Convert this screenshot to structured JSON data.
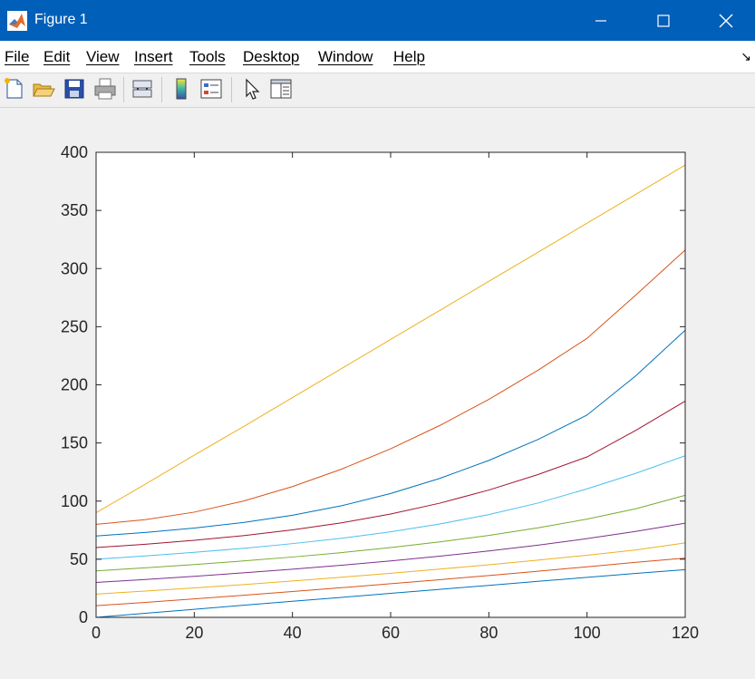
{
  "window": {
    "title": "Figure 1",
    "minimize_icon": "minimize-icon",
    "maximize_icon": "maximize-icon",
    "close_icon": "close-icon"
  },
  "menu": {
    "items": [
      "File",
      "Edit",
      "View",
      "Insert",
      "Tools",
      "Desktop",
      "Window",
      "Help"
    ],
    "dock_icon": "dock-arrow-icon"
  },
  "toolbar": {
    "buttons": [
      "new-figure-icon",
      "open-file-icon",
      "save-icon",
      "print-icon",
      "link-plot-icon",
      "colorbar-icon",
      "legend-icon",
      "pointer-icon",
      "property-inspector-icon"
    ]
  },
  "chart_data": {
    "type": "line",
    "title": "",
    "xlabel": "",
    "ylabel": "",
    "xlim": [
      0,
      120
    ],
    "ylim": [
      0,
      400
    ],
    "xticks": [
      0,
      20,
      40,
      60,
      80,
      100,
      120
    ],
    "yticks": [
      0,
      50,
      100,
      150,
      200,
      250,
      300,
      350,
      400
    ],
    "grid": false,
    "legend": "none",
    "x": [
      0,
      10,
      20,
      30,
      40,
      50,
      60,
      70,
      80,
      90,
      100,
      110,
      120
    ],
    "series": [
      {
        "color": "#0072bd",
        "values": [
          0,
          3.5,
          6.9,
          10.4,
          13.8,
          17.2,
          20.7,
          24.1,
          27.5,
          31.0,
          34.4,
          37.8,
          41.0
        ]
      },
      {
        "color": "#d95319",
        "values": [
          10,
          12.9,
          15.9,
          19.0,
          22.2,
          25.5,
          28.9,
          32.4,
          36.0,
          39.7,
          43.5,
          47.4,
          51.0
        ]
      },
      {
        "color": "#edb120",
        "values": [
          20,
          22.6,
          25.3,
          28.2,
          31.3,
          34.5,
          37.9,
          41.5,
          45.2,
          49.2,
          53.4,
          58.0,
          64.0
        ]
      },
      {
        "color": "#7e2f8e",
        "values": [
          30,
          32.6,
          35.3,
          38.3,
          41.4,
          44.8,
          48.5,
          52.6,
          57.1,
          62.1,
          67.7,
          74.0,
          81.0
        ]
      },
      {
        "color": "#77ac30",
        "values": [
          40,
          42.6,
          45.4,
          48.5,
          51.9,
          55.7,
          60.0,
          64.9,
          70.5,
          77.0,
          84.5,
          93.5,
          105.0
        ]
      },
      {
        "color": "#4dbeee",
        "values": [
          50,
          52.8,
          55.9,
          59.4,
          63.4,
          68.0,
          73.6,
          80.3,
          88.4,
          98.3,
          110.5,
          124.0,
          139.0
        ]
      },
      {
        "color": "#a2142f",
        "values": [
          60,
          62.9,
          66.3,
          70.3,
          75.2,
          81.3,
          88.9,
          98.2,
          109.5,
          122.8,
          138.0,
          161.0,
          186.0
        ]
      },
      {
        "color": "#0072bd",
        "values": [
          70,
          73.0,
          76.8,
          81.6,
          87.8,
          96.0,
          106.5,
          119.5,
          135.0,
          153.0,
          174.0,
          208.0,
          247.0
        ]
      },
      {
        "color": "#d95319",
        "values": [
          80,
          84.0,
          90.5,
          100.0,
          112.5,
          127.5,
          145.0,
          165.0,
          187.5,
          212.5,
          240.0,
          277.5,
          316.0
        ]
      },
      {
        "color": "#edb120",
        "values": [
          90,
          114.5,
          139.5,
          164.0,
          189.0,
          214.0,
          239.0,
          264.0,
          289.0,
          314.0,
          339.0,
          364.0,
          389.0
        ]
      }
    ]
  }
}
